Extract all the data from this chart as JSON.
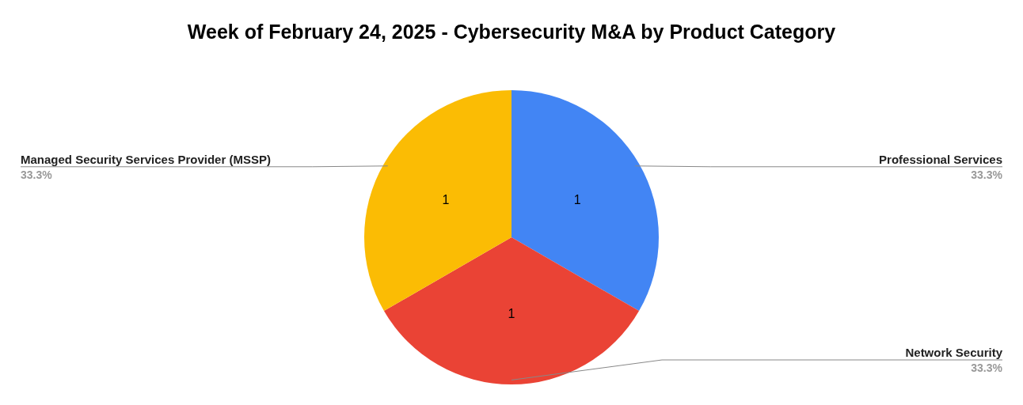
{
  "chart_data": {
    "type": "pie",
    "title": "Week of February 24, 2025 - Cybersecurity M&A by Product Category",
    "categories": [
      "Professional Services",
      "Network Security",
      "Managed Security Services Provider (MSSP)"
    ],
    "values": [
      1,
      1,
      1
    ],
    "colors": [
      "#4285f4",
      "#ea4335",
      "#fbbc04"
    ],
    "data_labels": true,
    "annotations": [
      "33.3%",
      "33.3%",
      "33.3%"
    ]
  }
}
